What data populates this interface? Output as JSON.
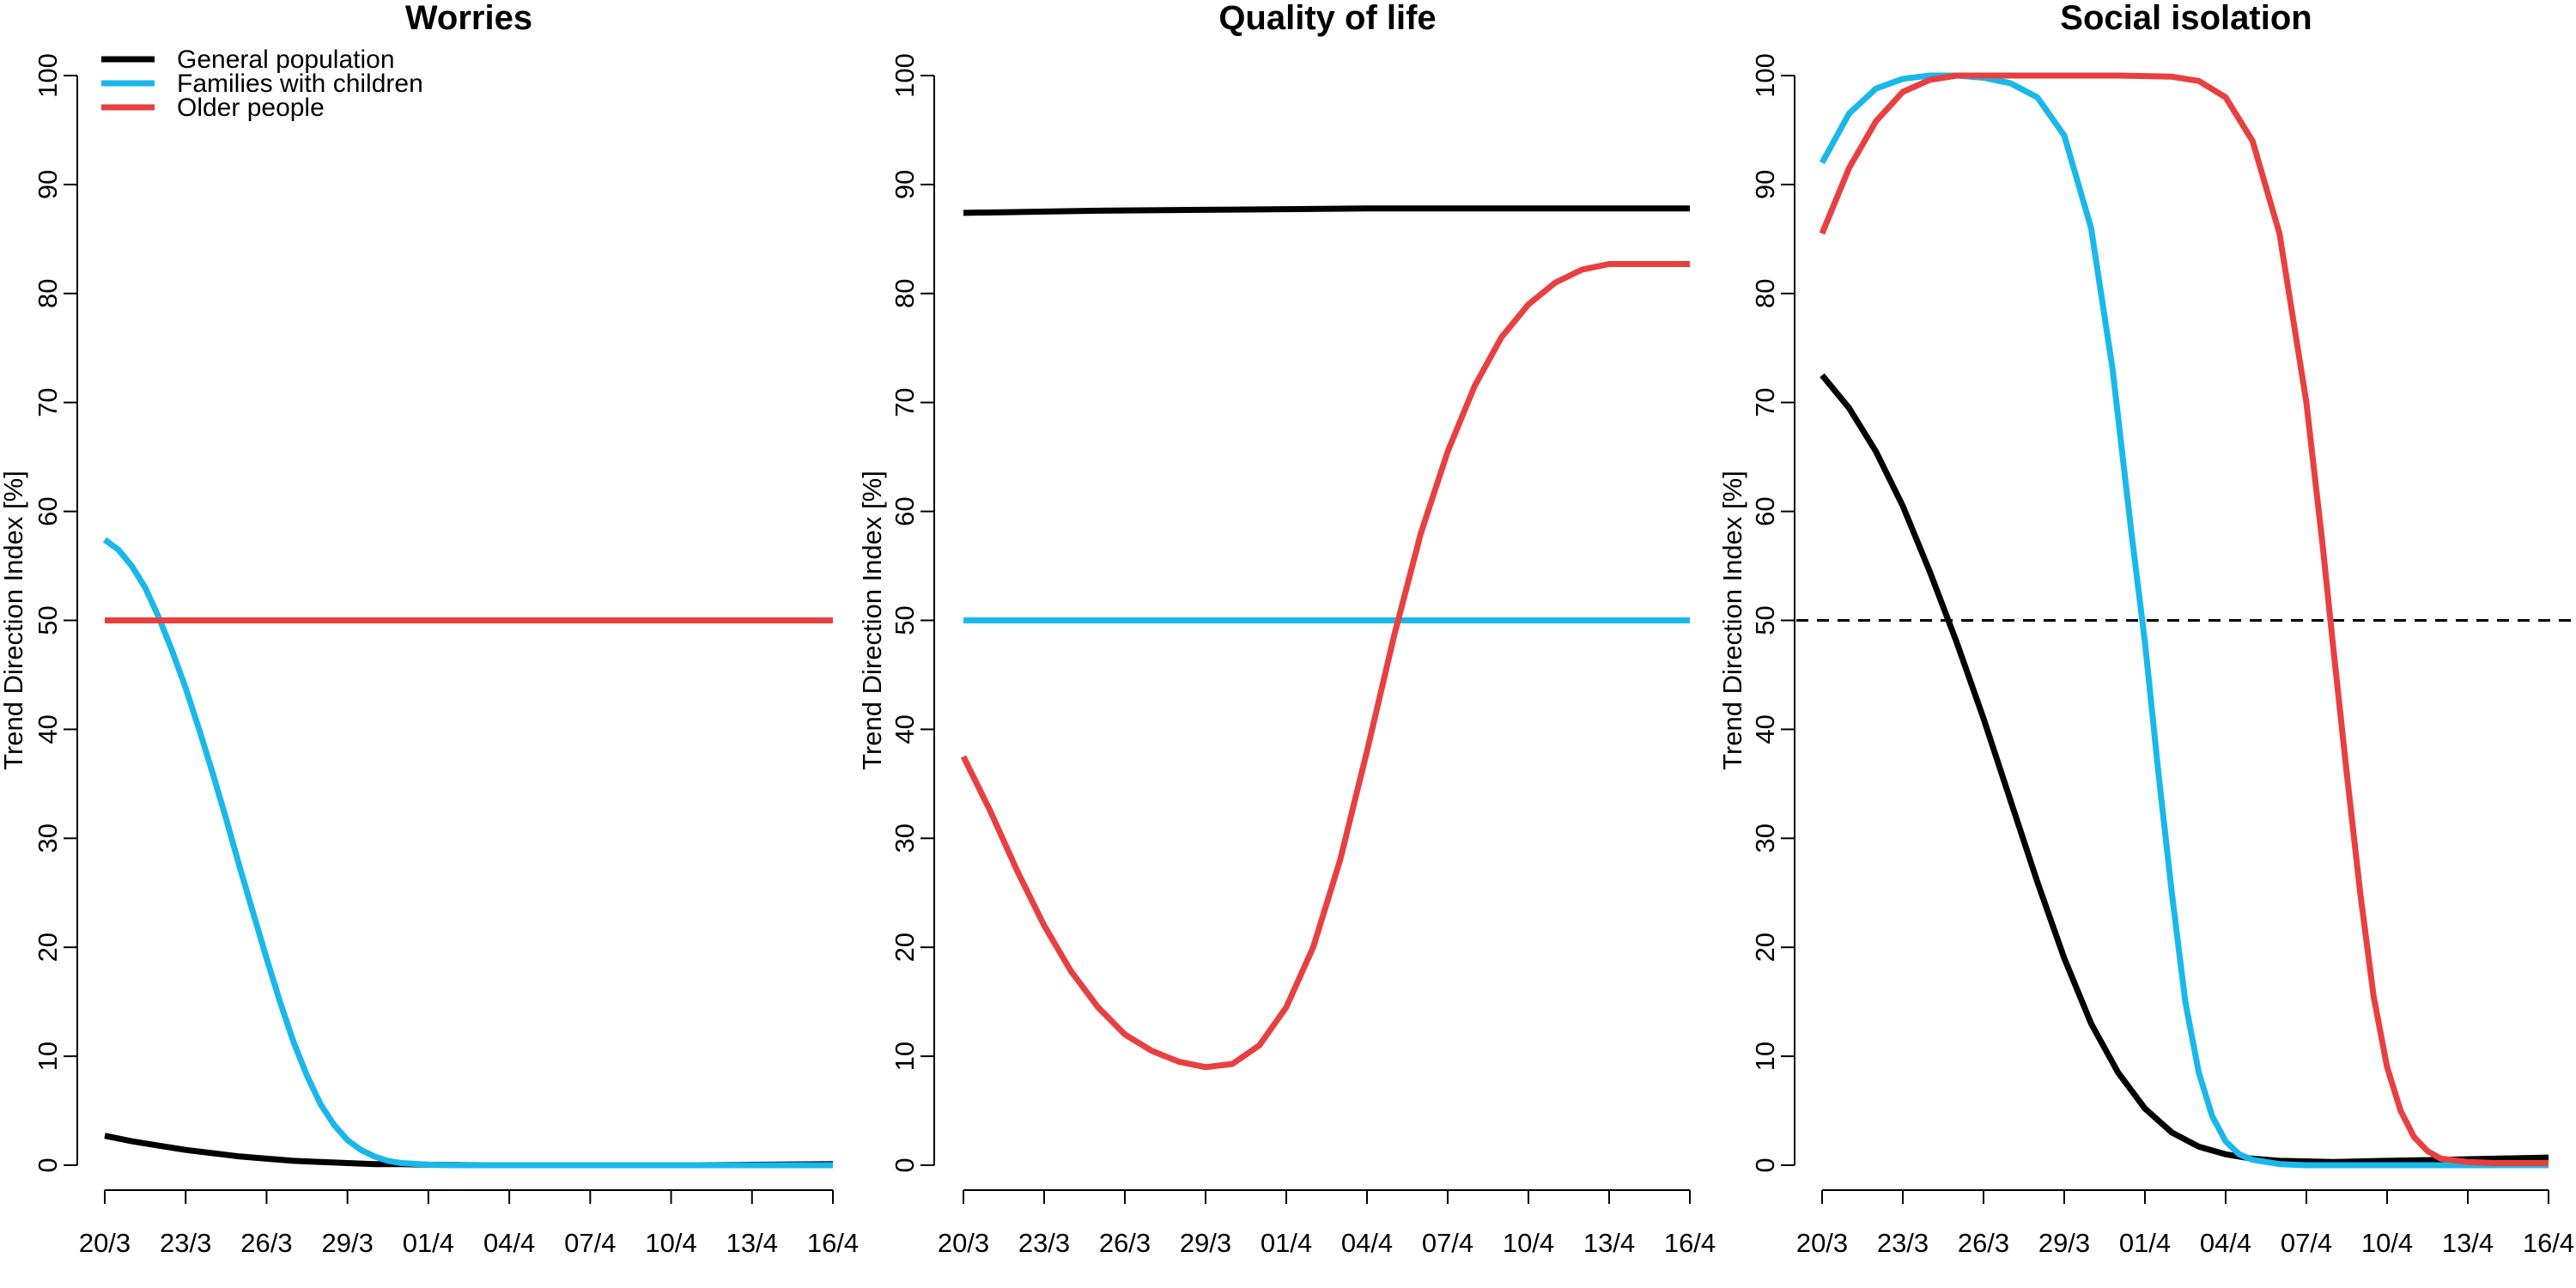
{
  "chart_data": [
    {
      "type": "line",
      "title": "Worries",
      "ylabel": "Trend Direction Index [%]",
      "xlabel": "",
      "x_tick_labels": [
        "20/3",
        "23/3",
        "26/3",
        "29/3",
        "01/4",
        "04/4",
        "07/4",
        "10/4",
        "13/4",
        "16/4"
      ],
      "y_ticks": [
        "0",
        "10",
        "20",
        "30",
        "40",
        "50",
        "60",
        "70",
        "80",
        "90",
        "100"
      ],
      "ylim": [
        0,
        100
      ],
      "x_range_days": [
        0,
        27
      ],
      "reference_line": null,
      "legend": {
        "placement": "top-left",
        "entries": [
          "General population",
          "Families with children",
          "Older people"
        ]
      },
      "series": [
        {
          "name": "General population",
          "color": "#000000",
          "points": [
            [
              0,
              2.7
            ],
            [
              1,
              2.2
            ],
            [
              2,
              1.8
            ],
            [
              3,
              1.4
            ],
            [
              4,
              1.1
            ],
            [
              5,
              0.8
            ],
            [
              6,
              0.6
            ],
            [
              7,
              0.4
            ],
            [
              8,
              0.3
            ],
            [
              9,
              0.2
            ],
            [
              10,
              0.1
            ],
            [
              11,
              0.1
            ],
            [
              12,
              0.05
            ],
            [
              14,
              0.0
            ],
            [
              18,
              0.0
            ],
            [
              22,
              0.0
            ],
            [
              27,
              0.1
            ]
          ]
        },
        {
          "name": "Families with children",
          "color": "#1ab8ea",
          "points": [
            [
              0,
              57.4
            ],
            [
              0.5,
              56.5
            ],
            [
              1,
              55.0
            ],
            [
              1.5,
              53.0
            ],
            [
              2,
              50.3
            ],
            [
              2.5,
              47.2
            ],
            [
              3,
              43.8
            ],
            [
              3.5,
              40.0
            ],
            [
              4,
              36.0
            ],
            [
              4.5,
              31.8
            ],
            [
              5,
              27.4
            ],
            [
              5.5,
              23.2
            ],
            [
              6,
              19.0
            ],
            [
              6.5,
              15.0
            ],
            [
              7,
              11.3
            ],
            [
              7.5,
              8.2
            ],
            [
              8,
              5.6
            ],
            [
              8.5,
              3.7
            ],
            [
              9,
              2.3
            ],
            [
              9.5,
              1.4
            ],
            [
              10,
              0.8
            ],
            [
              10.5,
              0.4
            ],
            [
              11,
              0.2
            ],
            [
              12,
              0.05
            ],
            [
              13,
              0.0
            ],
            [
              27,
              0.0
            ]
          ]
        },
        {
          "name": "Older people",
          "color": "#e84040",
          "points": [
            [
              0,
              50.0
            ],
            [
              27,
              50.0
            ]
          ]
        }
      ]
    },
    {
      "type": "line",
      "title": "Quality of life",
      "ylabel": "Trend Direction Index [%]",
      "xlabel": "",
      "x_tick_labels": [
        "20/3",
        "23/3",
        "26/3",
        "29/3",
        "01/4",
        "04/4",
        "07/4",
        "10/4",
        "13/4",
        "16/4"
      ],
      "y_ticks": [
        "0",
        "10",
        "20",
        "30",
        "40",
        "50",
        "60",
        "70",
        "80",
        "90",
        "100"
      ],
      "ylim": [
        0,
        100
      ],
      "x_range_days": [
        0,
        27
      ],
      "reference_line": null,
      "series": [
        {
          "name": "General population",
          "color": "#000000",
          "points": [
            [
              0,
              87.4
            ],
            [
              5,
              87.6
            ],
            [
              10,
              87.7
            ],
            [
              15,
              87.8
            ],
            [
              20,
              87.8
            ],
            [
              27,
              87.8
            ]
          ]
        },
        {
          "name": "Families with children",
          "color": "#1ab8ea",
          "points": [
            [
              0,
              50.0
            ],
            [
              27,
              50.0
            ]
          ]
        },
        {
          "name": "Older people",
          "color": "#e84040",
          "points": [
            [
              0,
              37.5
            ],
            [
              1,
              32.5
            ],
            [
              2,
              27.0
            ],
            [
              3,
              22.0
            ],
            [
              4,
              17.8
            ],
            [
              5,
              14.5
            ],
            [
              6,
              12.0
            ],
            [
              7,
              10.5
            ],
            [
              8,
              9.5
            ],
            [
              9,
              9.0
            ],
            [
              10,
              9.3
            ],
            [
              11,
              11.0
            ],
            [
              12,
              14.5
            ],
            [
              13,
              20.0
            ],
            [
              14,
              28.0
            ],
            [
              15,
              38.0
            ],
            [
              16,
              48.5
            ],
            [
              17,
              58.0
            ],
            [
              18,
              65.5
            ],
            [
              19,
              71.5
            ],
            [
              20,
              76.0
            ],
            [
              21,
              79.0
            ],
            [
              22,
              81.0
            ],
            [
              23,
              82.2
            ],
            [
              24,
              82.7
            ],
            [
              27,
              82.7
            ]
          ]
        }
      ]
    },
    {
      "type": "line",
      "title": "Social isolation",
      "ylabel": "Trend Direction Index [%]",
      "xlabel": "",
      "x_tick_labels": [
        "20/3",
        "23/3",
        "26/3",
        "29/3",
        "01/4",
        "04/4",
        "07/4",
        "10/4",
        "13/4",
        "16/4"
      ],
      "y_ticks": [
        "0",
        "10",
        "20",
        "30",
        "40",
        "50",
        "60",
        "70",
        "80",
        "90",
        "100"
      ],
      "ylim": [
        0,
        100
      ],
      "x_range_days": [
        0,
        27
      ],
      "reference_line": {
        "y": 50,
        "style": "dashed"
      },
      "series": [
        {
          "name": "General population",
          "color": "#000000",
          "points": [
            [
              0,
              72.5
            ],
            [
              1,
              69.5
            ],
            [
              2,
              65.5
            ],
            [
              3,
              60.5
            ],
            [
              4,
              54.5
            ],
            [
              5,
              48.0
            ],
            [
              6,
              41.0
            ],
            [
              7,
              33.5
            ],
            [
              8,
              26.0
            ],
            [
              9,
              19.0
            ],
            [
              10,
              13.0
            ],
            [
              11,
              8.5
            ],
            [
              12,
              5.2
            ],
            [
              13,
              3.0
            ],
            [
              14,
              1.7
            ],
            [
              15,
              1.0
            ],
            [
              16,
              0.6
            ],
            [
              17,
              0.4
            ],
            [
              19,
              0.3
            ],
            [
              21,
              0.4
            ],
            [
              23,
              0.5
            ],
            [
              25,
              0.6
            ],
            [
              27,
              0.7
            ]
          ]
        },
        {
          "name": "Families with children",
          "color": "#1ab8ea",
          "points": [
            [
              0,
              92.0
            ],
            [
              1,
              96.5
            ],
            [
              2,
              98.8
            ],
            [
              3,
              99.7
            ],
            [
              4,
              100.0
            ],
            [
              5,
              100.0
            ],
            [
              6,
              99.8
            ],
            [
              7,
              99.3
            ],
            [
              8,
              98.0
            ],
            [
              9,
              94.5
            ],
            [
              10,
              86.0
            ],
            [
              10.8,
              73.0
            ],
            [
              11.5,
              58.0
            ],
            [
              12,
              48.0
            ],
            [
              12.5,
              36.0
            ],
            [
              13,
              25.0
            ],
            [
              13.5,
              15.0
            ],
            [
              14,
              8.5
            ],
            [
              14.5,
              4.5
            ],
            [
              15,
              2.2
            ],
            [
              15.5,
              1.0
            ],
            [
              16,
              0.5
            ],
            [
              17,
              0.1
            ],
            [
              18,
              0.0
            ],
            [
              27,
              0.0
            ]
          ]
        },
        {
          "name": "Older people",
          "color": "#e84040",
          "points": [
            [
              0,
              85.5
            ],
            [
              1,
              91.5
            ],
            [
              2,
              95.8
            ],
            [
              3,
              98.5
            ],
            [
              4,
              99.6
            ],
            [
              5,
              100.0
            ],
            [
              8,
              100.0
            ],
            [
              11,
              100.0
            ],
            [
              13,
              99.9
            ],
            [
              14,
              99.5
            ],
            [
              15,
              98.0
            ],
            [
              16,
              94.0
            ],
            [
              17,
              85.5
            ],
            [
              18,
              70.0
            ],
            [
              18.6,
              57.0
            ],
            [
              19,
              47.5
            ],
            [
              19.5,
              36.0
            ],
            [
              20,
              25.0
            ],
            [
              20.5,
              15.5
            ],
            [
              21,
              9.0
            ],
            [
              21.5,
              5.0
            ],
            [
              22,
              2.6
            ],
            [
              22.5,
              1.3
            ],
            [
              23,
              0.6
            ],
            [
              24,
              0.3
            ],
            [
              25,
              0.2
            ],
            [
              27,
              0.2
            ]
          ]
        }
      ]
    }
  ]
}
